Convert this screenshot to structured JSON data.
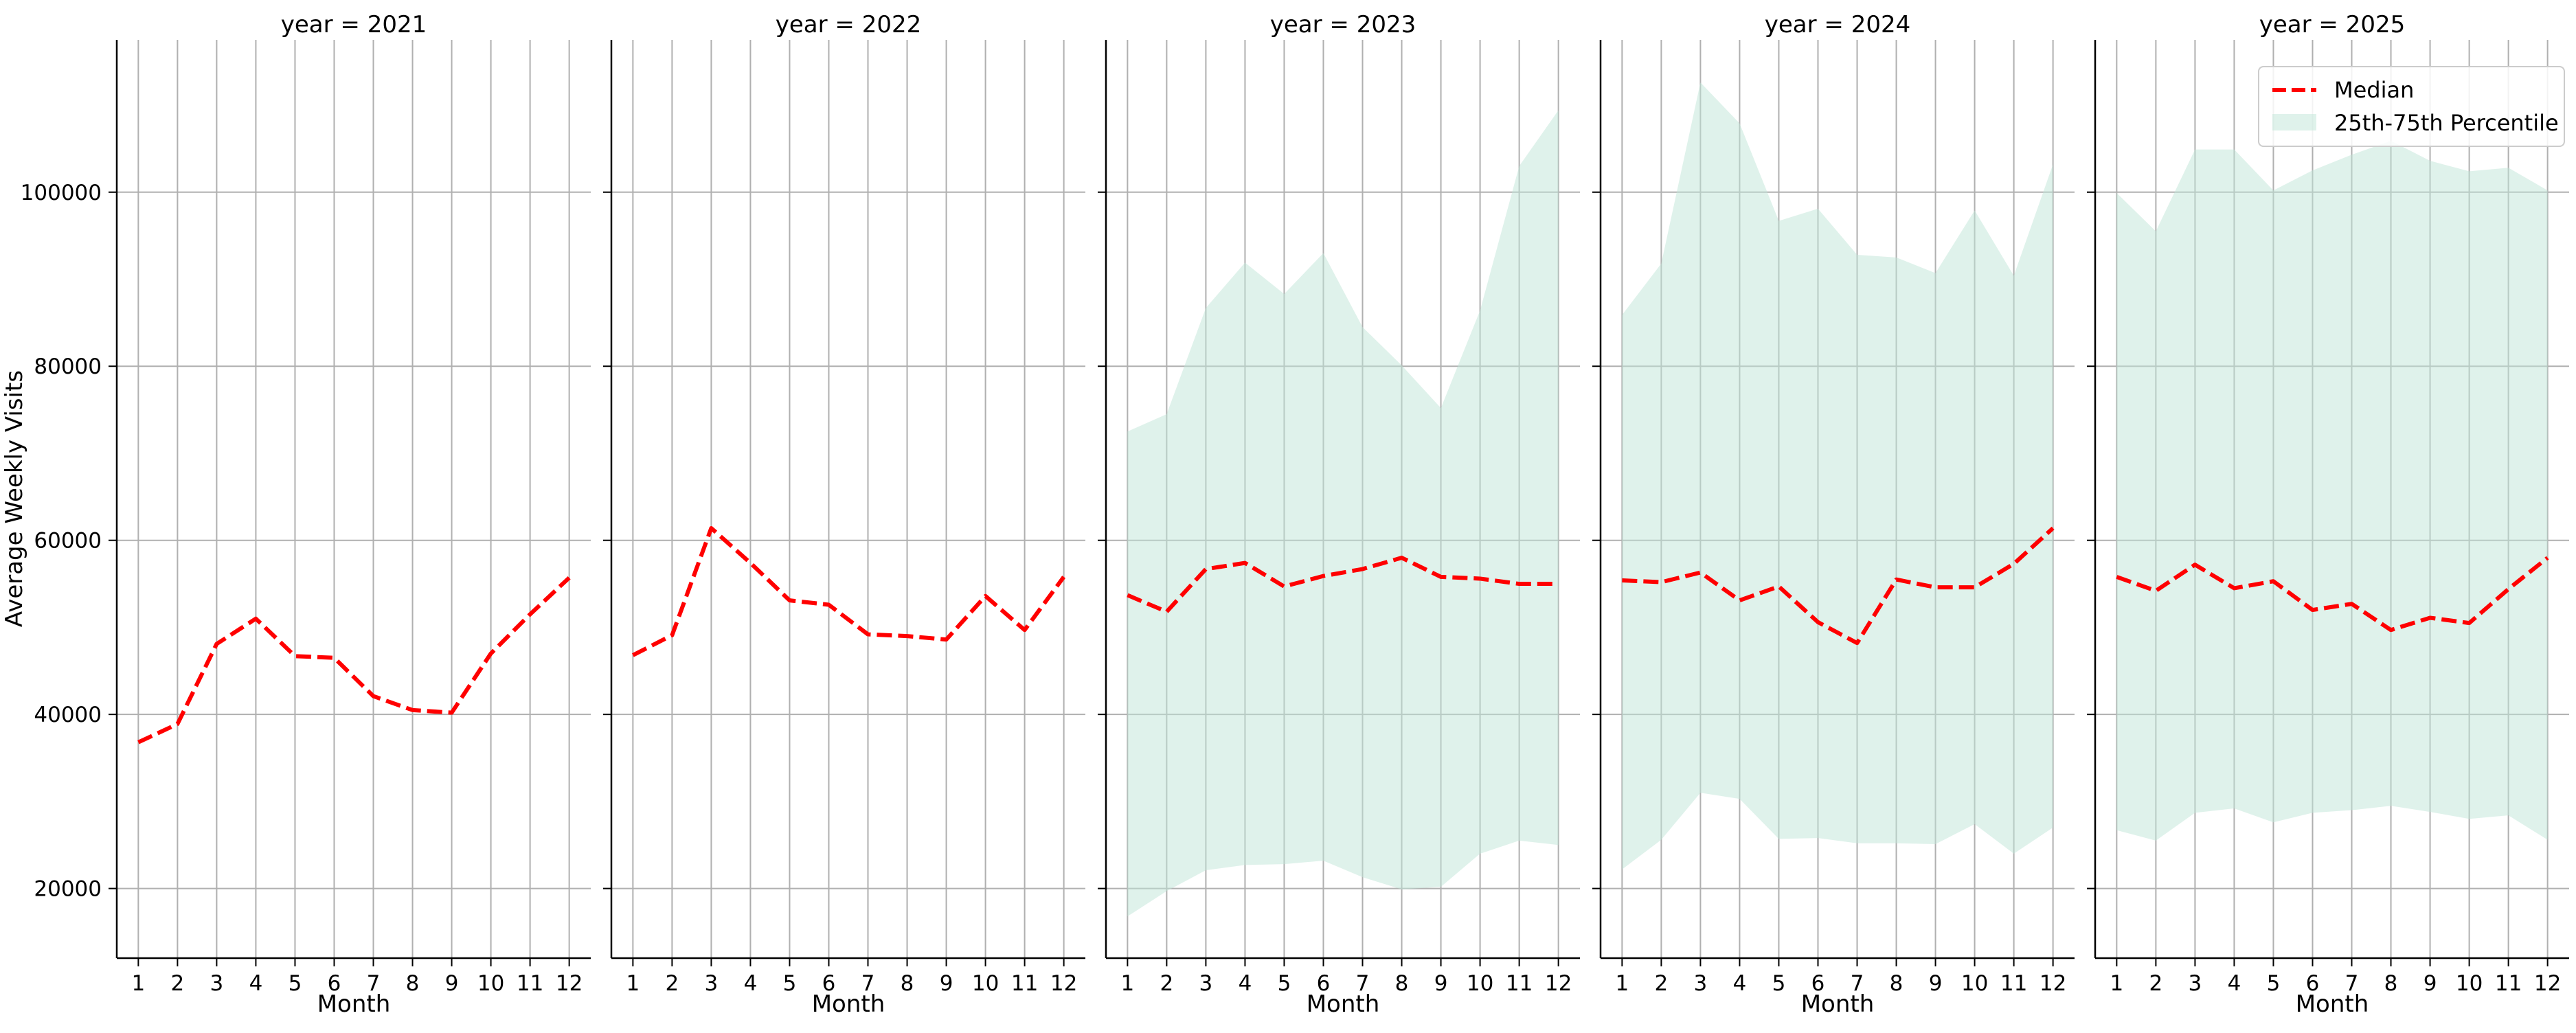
{
  "chart_data": {
    "type": "line",
    "ylabel": "Average Weekly Visits",
    "xlabel": "Month",
    "x": [
      1,
      2,
      3,
      4,
      5,
      6,
      7,
      8,
      9,
      10,
      11,
      12
    ],
    "ylim": [
      12000,
      117500
    ],
    "xlim": [
      0.45,
      12.55
    ],
    "yticks": [
      20000,
      40000,
      60000,
      80000,
      100000
    ],
    "grid": true,
    "legend": {
      "position": "top-right",
      "median_label": "Median",
      "band_label": "25th-75th Percentile"
    },
    "colors": {
      "median": "#ff0000",
      "band": "#bfe6d8",
      "grid": "#b0b0b0",
      "axis": "#000000"
    },
    "panels": [
      {
        "title": "year = 2021",
        "median": [
          36800,
          38900,
          48100,
          51000,
          46700,
          46500,
          42100,
          40500,
          40200,
          47000,
          51500,
          55700
        ],
        "p25": null,
        "p75": null
      },
      {
        "title": "year = 2022",
        "median": [
          46800,
          49100,
          61400,
          57400,
          53100,
          52600,
          49200,
          49000,
          48600,
          53600,
          49700,
          55800
        ],
        "p25": null,
        "p75": null
      },
      {
        "title": "year = 2023",
        "median": [
          53700,
          51800,
          56700,
          57400,
          54700,
          55900,
          56700,
          58000,
          55800,
          55600,
          55000,
          55000
        ],
        "p25": [
          16800,
          19700,
          22100,
          22700,
          22800,
          23200,
          21300,
          19900,
          20200,
          24000,
          25500,
          25000
        ],
        "p75": [
          72500,
          74500,
          86700,
          91900,
          88300,
          93000,
          84500,
          80100,
          75200,
          86400,
          103000,
          109400
        ]
      },
      {
        "title": "year = 2024",
        "median": [
          55400,
          55200,
          56300,
          53100,
          54700,
          50600,
          48200,
          55500,
          54600,
          54600,
          57300,
          61400
        ],
        "p25": [
          22200,
          25600,
          31000,
          30300,
          25700,
          25800,
          25200,
          25200,
          25100,
          27400,
          24000,
          27000
        ],
        "p75": [
          85900,
          91800,
          112600,
          107900,
          96700,
          98100,
          92800,
          92500,
          90700,
          97900,
          90400,
          103200
        ]
      },
      {
        "title": "year = 2025",
        "median": [
          55800,
          54200,
          57200,
          54500,
          55300,
          52000,
          52700,
          49700,
          51100,
          50500,
          54400,
          58000
        ],
        "p25": [
          26700,
          25500,
          28700,
          29200,
          27600,
          28700,
          29000,
          29500,
          28800,
          28000,
          28400,
          25600
        ],
        "p75": [
          99900,
          95500,
          104900,
          104900,
          100200,
          102500,
          104300,
          105900,
          103600,
          102400,
          102800,
          100200
        ]
      }
    ]
  }
}
